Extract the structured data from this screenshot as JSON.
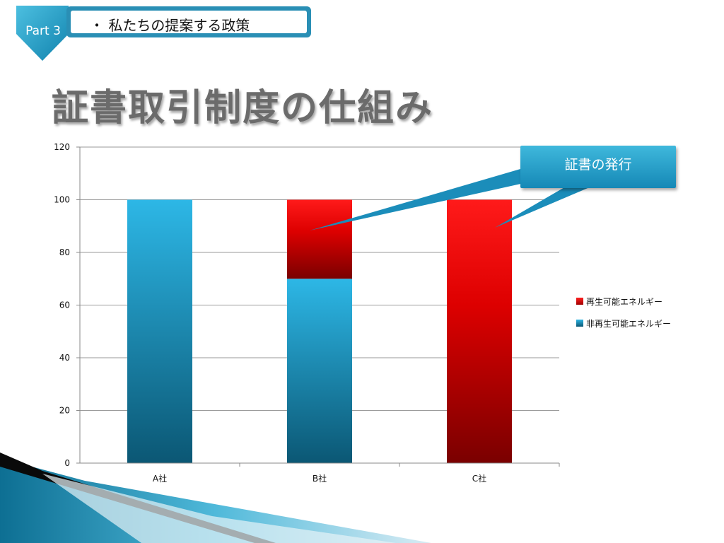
{
  "badge": {
    "label": "Part 3"
  },
  "topic": {
    "text": "・ 私たちの提案する政策"
  },
  "title": "証書取引制度の仕組み",
  "callout": {
    "text": "証書の発行"
  },
  "colors": {
    "renewable": "#e01010",
    "non_renewable": "#1a9fcc",
    "accent": "#2a8fb5"
  },
  "chart_data": {
    "type": "bar",
    "stacked": true,
    "categories": [
      "A社",
      "B社",
      "C社"
    ],
    "series": [
      {
        "name": "非再生可能エネルギー",
        "values": [
          100,
          70,
          0
        ]
      },
      {
        "name": "再生可能エネルギー",
        "values": [
          0,
          30,
          100
        ]
      }
    ],
    "ylim": [
      0,
      120
    ],
    "yticks": [
      "0",
      "20",
      "40",
      "60",
      "80",
      "100",
      "120"
    ],
    "grid": true,
    "legend_position": "right",
    "legend": [
      "再生可能エネルギー",
      "非再生可能エネルギー"
    ]
  }
}
